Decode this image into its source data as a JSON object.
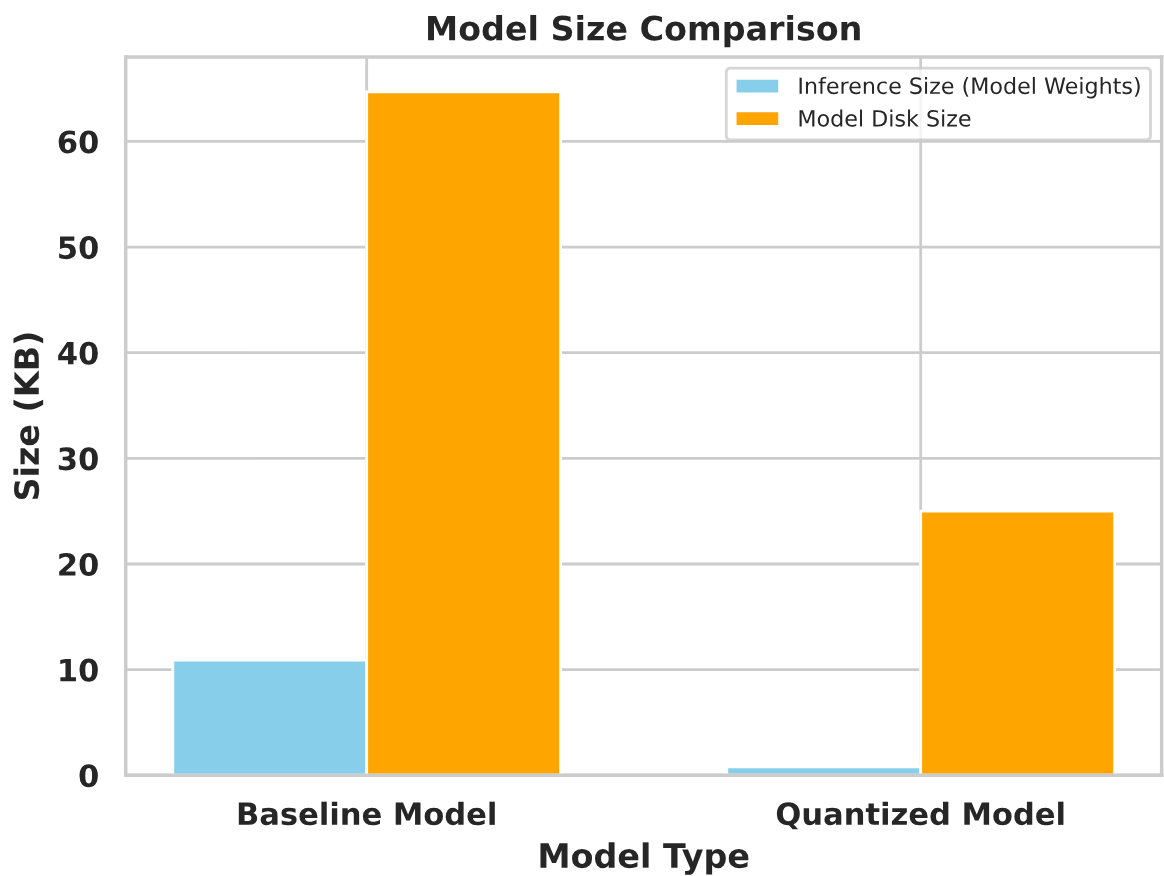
{
  "chart_data": {
    "type": "bar",
    "title": "Model Size Comparison",
    "xlabel": "Model Type",
    "ylabel": "Size (KB)",
    "categories": [
      "Baseline Model",
      "Quantized Model"
    ],
    "series": [
      {
        "name": "Inference Size (Model Weights)",
        "color": "#87ceeb",
        "values": [
          10.9,
          0.8
        ]
      },
      {
        "name": "Model Disk Size",
        "color": "#ffa500",
        "values": [
          64.7,
          25.0
        ]
      }
    ],
    "ylim": [
      0,
      68
    ],
    "yticks": [
      0,
      10,
      20,
      30,
      40,
      50,
      60
    ],
    "grid": true,
    "legend": "top right"
  }
}
